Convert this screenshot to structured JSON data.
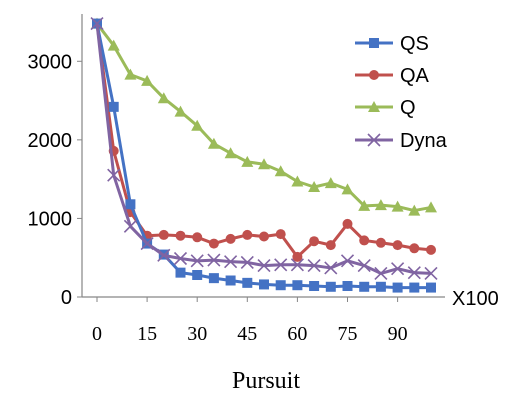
{
  "chart_data": {
    "type": "line",
    "title": "",
    "xlabel": "Pursuit",
    "ylabel": "",
    "x_unit": "X100",
    "xlim": [
      0,
      100
    ],
    "ylim": [
      0,
      3500
    ],
    "x_ticks": [
      "0",
      "15",
      "30",
      "45",
      "60",
      "75",
      "90"
    ],
    "y_ticks": [
      "0",
      "1000",
      "2000",
      "3000"
    ],
    "grid": false,
    "legend_position": "top-right",
    "x": [
      0,
      5,
      10,
      15,
      20,
      25,
      30,
      35,
      40,
      45,
      50,
      55,
      60,
      65,
      70,
      75,
      80,
      85,
      90,
      95,
      100
    ],
    "series": [
      {
        "name": "QS",
        "color": "#4472c4",
        "marker": "square",
        "values": [
          3480,
          2420,
          1180,
          680,
          540,
          310,
          280,
          240,
          210,
          180,
          160,
          150,
          150,
          140,
          130,
          140,
          130,
          130,
          120,
          120,
          120
        ]
      },
      {
        "name": "QA",
        "color": "#c0504d",
        "marker": "circle",
        "values": [
          3480,
          1860,
          1080,
          780,
          790,
          780,
          760,
          680,
          740,
          790,
          770,
          800,
          510,
          710,
          660,
          930,
          720,
          690,
          660,
          620,
          600
        ]
      },
      {
        "name": "Q",
        "color": "#9bbb59",
        "marker": "triangle",
        "values": [
          3480,
          3200,
          2830,
          2750,
          2530,
          2360,
          2180,
          1950,
          1830,
          1720,
          1690,
          1600,
          1470,
          1400,
          1450,
          1370,
          1160,
          1170,
          1150,
          1100,
          1140
        ]
      },
      {
        "name": "Dyna",
        "color": "#8064a2",
        "marker": "x",
        "values": [
          3480,
          1550,
          900,
          680,
          530,
          490,
          460,
          470,
          450,
          440,
          400,
          410,
          410,
          400,
          370,
          460,
          400,
          300,
          360,
          310,
          300
        ]
      }
    ]
  }
}
